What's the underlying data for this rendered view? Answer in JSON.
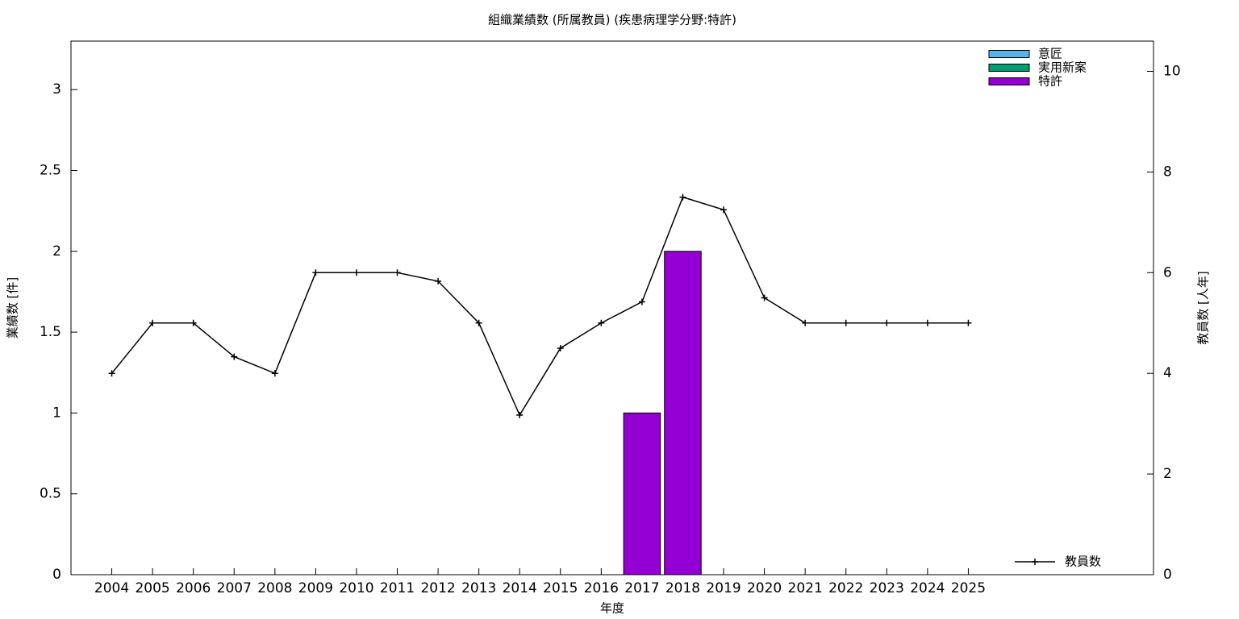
{
  "chart_data": {
    "type": "bar",
    "title": "組織業績数 (所属教員) (疾患病理学分野:特許)",
    "x_label": "年度",
    "y_label": "業績数 [件]",
    "y2_label": "教員数 [人年]",
    "categories": [
      "2004",
      "2005",
      "2006",
      "2007",
      "2008",
      "2009",
      "2010",
      "2011",
      "2012",
      "2013",
      "2014",
      "2015",
      "2016",
      "2017",
      "2018",
      "2019",
      "2020",
      "2021",
      "2022",
      "2023",
      "2024",
      "2025"
    ],
    "series": [
      {
        "name": "意匠",
        "color": "#56b4e9",
        "values": [
          0,
          0,
          0,
          0,
          0,
          0,
          0,
          0,
          0,
          0,
          0,
          0,
          0,
          0,
          0,
          0,
          0,
          0,
          0,
          0,
          0,
          0
        ]
      },
      {
        "name": "実用新案",
        "color": "#009e73",
        "values": [
          0,
          0,
          0,
          0,
          0,
          0,
          0,
          0,
          0,
          0,
          0,
          0,
          0,
          0,
          0,
          0,
          0,
          0,
          0,
          0,
          0,
          0
        ]
      },
      {
        "name": "特許",
        "color": "#9400d3",
        "values": [
          0,
          0,
          0,
          0,
          0,
          0,
          0,
          0,
          0,
          0,
          0,
          0,
          0,
          1,
          2,
          0,
          0,
          0,
          0,
          0,
          0,
          0
        ]
      },
      {
        "name": "教員数",
        "color": "#000000",
        "type": "line",
        "axis": "y2",
        "values": [
          4,
          5,
          5,
          4.33,
          4,
          6,
          6,
          6,
          5.83,
          5,
          3.17,
          4.5,
          5,
          5.42,
          7.5,
          7.25,
          5.5,
          5,
          5,
          5,
          5,
          5
        ]
      }
    ],
    "ylim": [
      0,
      3.3
    ],
    "yticks": [
      0,
      0.5,
      1,
      1.5,
      2,
      2.5,
      3
    ],
    "y2lim": [
      0,
      10.6
    ],
    "y2ticks": [
      0,
      2,
      4,
      6,
      8,
      10
    ],
    "legend": "top-right",
    "grid": false
  }
}
